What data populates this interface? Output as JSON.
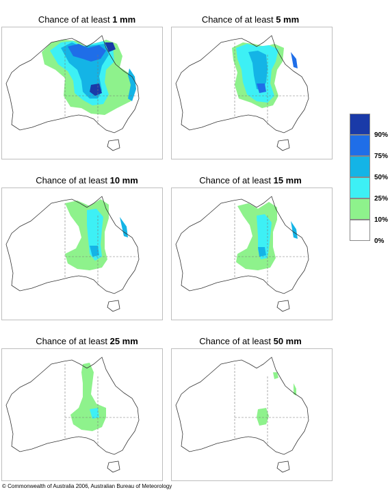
{
  "panels": [
    {
      "prefix": "Chance of at least ",
      "amount": "1 mm"
    },
    {
      "prefix": "Chance of at least ",
      "amount": "5 mm"
    },
    {
      "prefix": "Chance of at least ",
      "amount": "10 mm"
    },
    {
      "prefix": "Chance of at least ",
      "amount": "15 mm"
    },
    {
      "prefix": "Chance of at least ",
      "amount": "25 mm"
    },
    {
      "prefix": "Chance of at least ",
      "amount": "50 mm"
    }
  ],
  "legend": {
    "ticks": [
      "90%",
      "75%",
      "50%",
      "25%",
      "10%",
      "0%"
    ],
    "colors": [
      "#1a3aa8",
      "#1f6ee8",
      "#14b4e6",
      "#3df0f5",
      "#8ef28c",
      "#ffffff"
    ]
  },
  "copyright": "© Commonwealth of Australia 2006, Australian Bureau of Meteorology"
}
